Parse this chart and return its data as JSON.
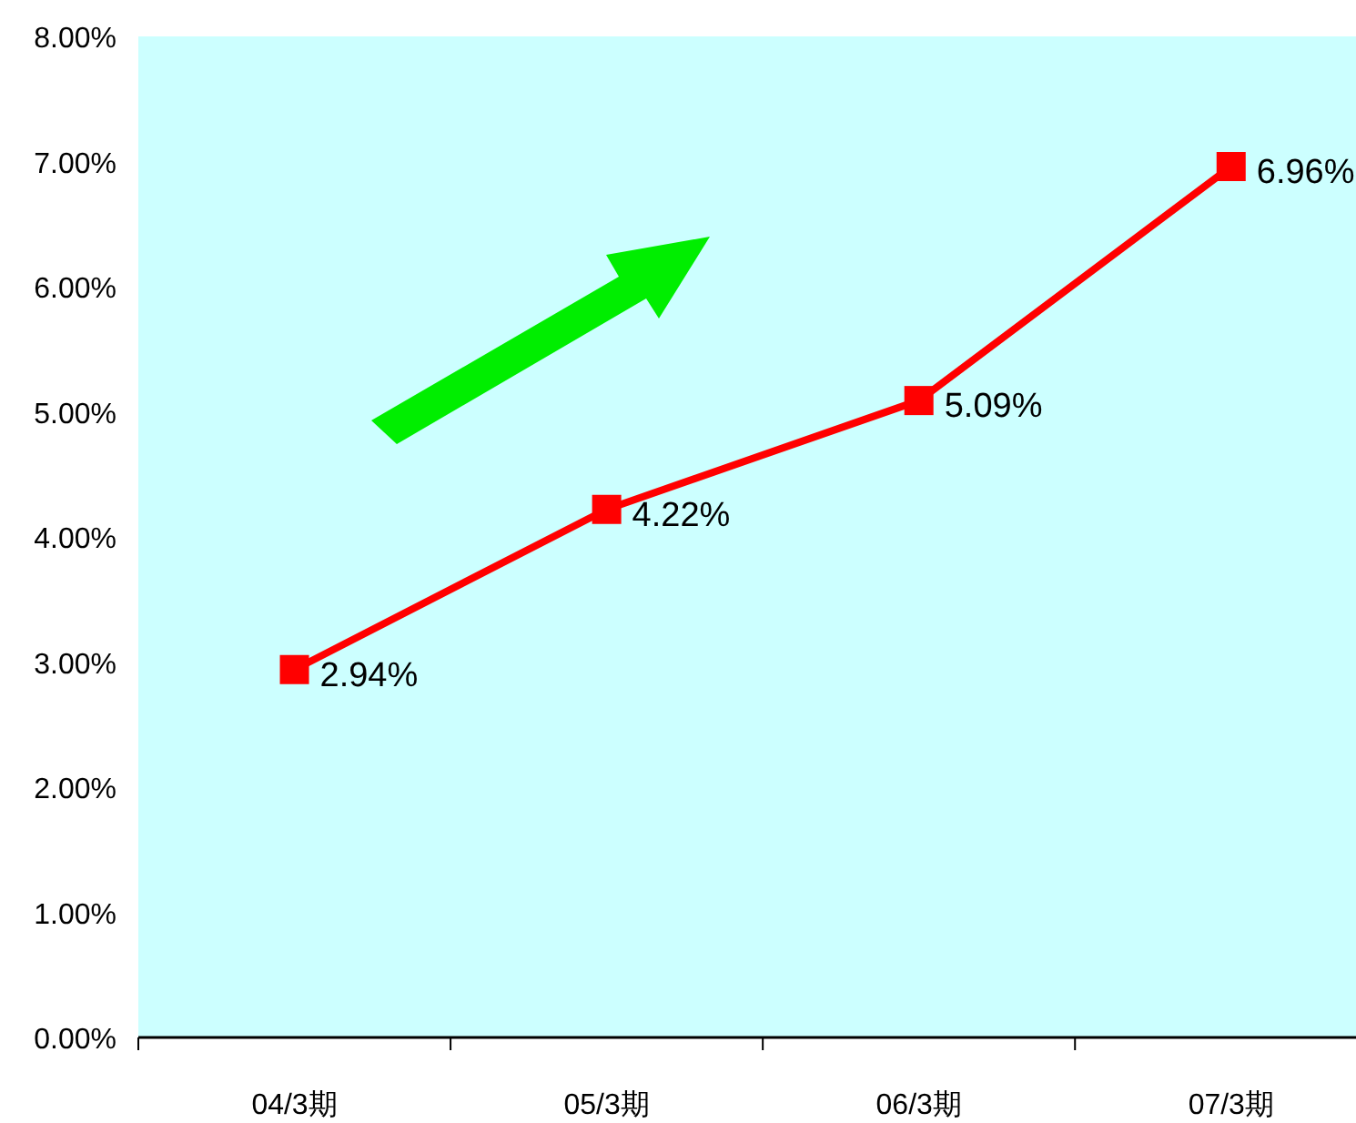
{
  "chart_data": {
    "type": "line",
    "categories": [
      "04/3期",
      "05/3期",
      "06/3期",
      "07/3期"
    ],
    "series": [
      {
        "color": "#ff0000",
        "values": [
          2.94,
          4.22,
          5.09,
          6.96
        ],
        "value_labels": [
          "2.94%",
          "4.22%",
          "5.09%",
          "6.96%"
        ]
      }
    ],
    "ylim": [
      0,
      8
    ],
    "yticks": [
      {
        "value": 0,
        "label": "0.00%"
      },
      {
        "value": 1,
        "label": "1.00%"
      },
      {
        "value": 2,
        "label": "2.00%"
      },
      {
        "value": 3,
        "label": "3.00%"
      },
      {
        "value": 4,
        "label": "4.00%"
      },
      {
        "value": 5,
        "label": "5.00%"
      },
      {
        "value": 6,
        "label": "6.00%"
      },
      {
        "value": 7,
        "label": "7.00%"
      },
      {
        "value": 8,
        "label": "8.00%"
      }
    ],
    "marker": "square",
    "line_style": "solid",
    "grid": false
  }
}
